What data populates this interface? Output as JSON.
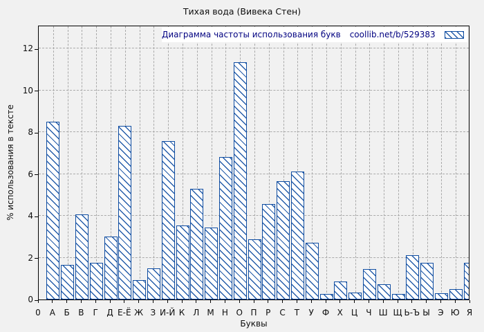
{
  "chart_data": {
    "type": "bar",
    "title": "Тихая вода (Вивека Стен)",
    "xlabel": "Буквы",
    "ylabel": "% использования в тексте",
    "x_origin_label": "0",
    "categories": [
      "А",
      "Б",
      "В",
      "Г",
      "Д",
      "Е-Ё",
      "Ж",
      "З",
      "И-Й",
      "К",
      "Л",
      "М",
      "Н",
      "О",
      "П",
      "Р",
      "С",
      "Т",
      "У",
      "Ф",
      "Х",
      "Ц",
      "Ч",
      "Ш",
      "Щ",
      "Ь-Ъ",
      "Ы",
      "Э",
      "Ю",
      "Я"
    ],
    "values": [
      8.5,
      1.65,
      4.05,
      1.75,
      3.0,
      8.3,
      0.93,
      1.5,
      7.58,
      3.55,
      5.28,
      3.45,
      6.82,
      11.35,
      2.87,
      4.55,
      5.65,
      6.1,
      2.7,
      0.25,
      0.87,
      0.32,
      1.45,
      0.73,
      0.28,
      2.1,
      1.75,
      0.31,
      0.5,
      1.75
    ],
    "yticks": [
      0,
      2,
      4,
      6,
      8,
      10,
      12
    ],
    "ylim": [
      0,
      13.1
    ],
    "grid": true,
    "legend": {
      "label": "Диаграмма частоты использования букв",
      "url": "coollib.net/b/529383",
      "position": "top-right-inside"
    },
    "colors": {
      "background": "#f1f1f1",
      "bar_outline": "#0d4ba0",
      "bar_hatch": "#0d4ba0",
      "legend_background": "#ffffff",
      "legend_text": "#000080",
      "grid": "#a9a9a9",
      "axis": "#000000"
    }
  }
}
